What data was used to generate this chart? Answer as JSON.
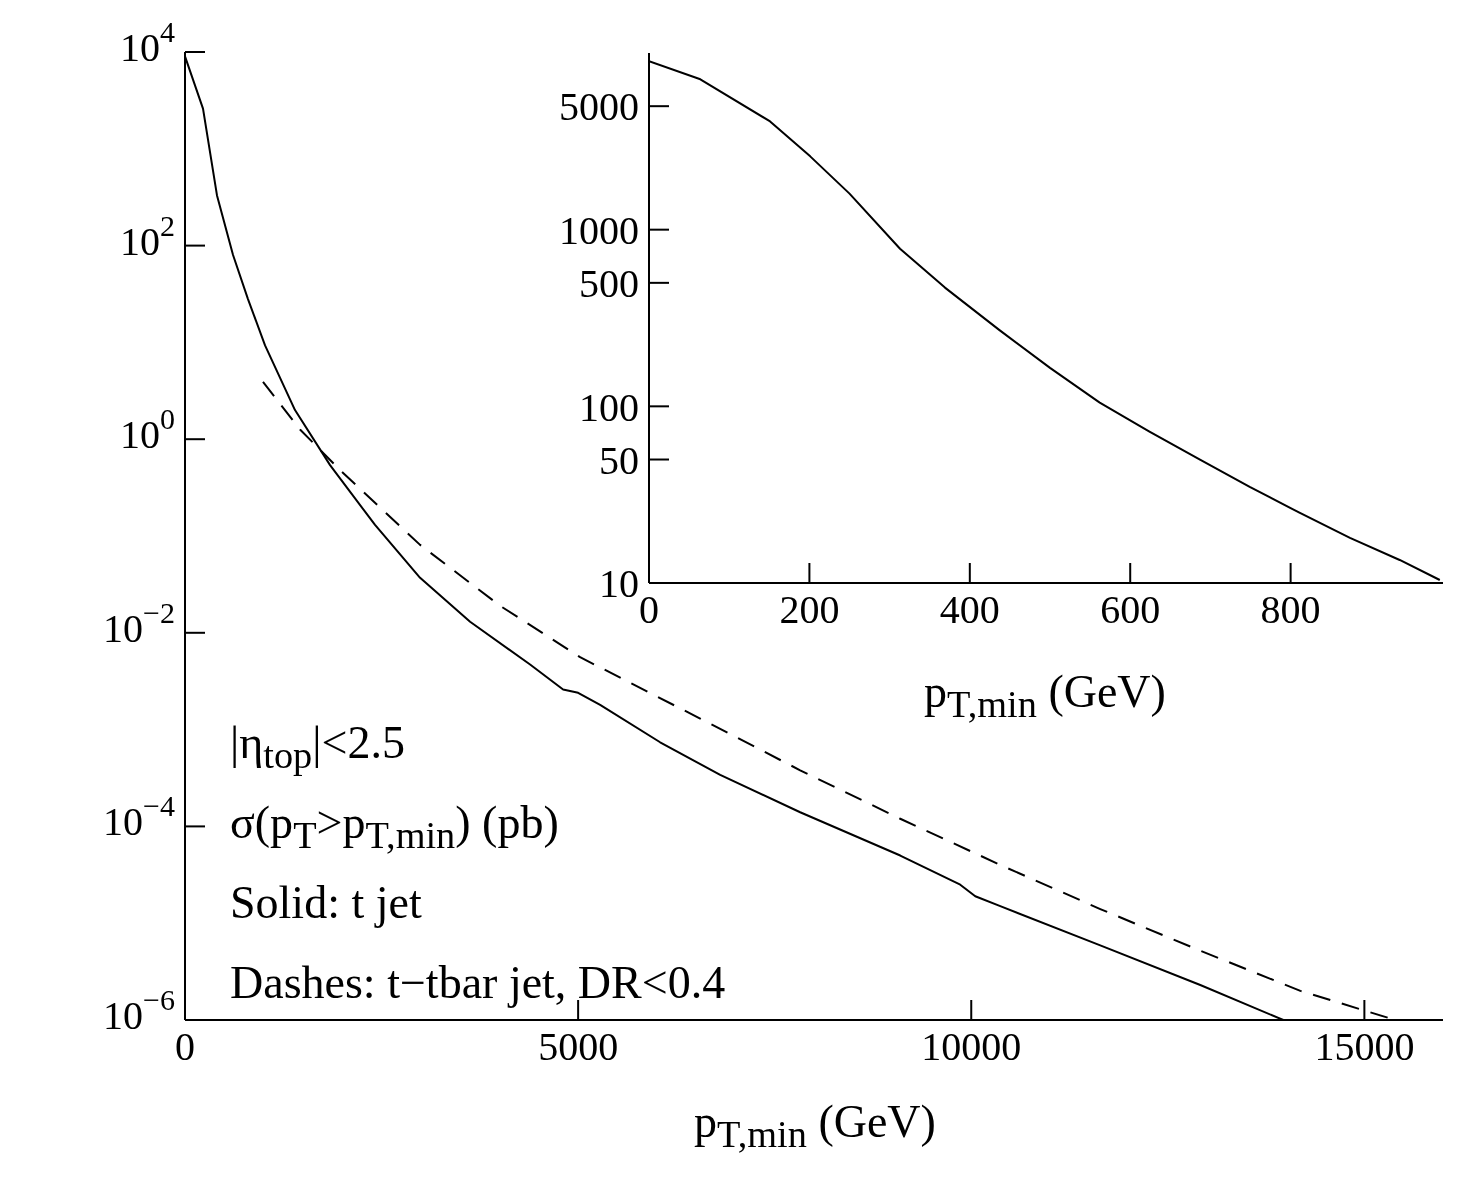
{
  "chart_data": [
    {
      "type": "line",
      "xlabel": "p$_{T,min}$ (GeV)",
      "log": "y",
      "marker": "none",
      "xlim": [
        0,
        16000
      ],
      "ylim": [
        1e-06,
        10000
      ],
      "xticks": [
        0,
        5000,
        10000,
        15000
      ],
      "yticks": [
        {
          "value": 1e-06,
          "label": "10$^{−6}$"
        },
        {
          "value": 0.0001,
          "label": "10$^{−4}$"
        },
        {
          "value": 0.01,
          "label": "10$^{−2}$"
        },
        {
          "value": 1,
          "label": "10$^{0}$"
        },
        {
          "value": 100,
          "label": "10$^{2}$"
        },
        {
          "value": 10000,
          "label": "10$^{4}$"
        }
      ],
      "annotations": [
        "|η$_{top}$|<2.5",
        "σ(p$_{T}$>p$_{T,min}$) (pb)",
        "Solid: t jet",
        "Dashes: t−tbar jet, DR<0.4"
      ],
      "series": [
        {
          "color": "#000000",
          "line_style": "solid",
          "x": [
            0,
            229,
            407,
            611,
            801,
            1018,
            1399,
            1845,
            2417,
            2990,
            3626,
            4389,
            4809,
            5000,
            5280,
            6043,
            6807,
            7824,
            9097,
            9860,
            10051,
            10369,
            11641,
            12913,
            13969
          ],
          "values": [
            9000,
            2600,
            330,
            80,
            28,
            9.3,
            2,
            0.54,
            0.13,
            0.037,
            0.013,
            0.0047,
            0.0026,
            0.0024,
            0.0018,
            0.00074,
            0.00034,
            0.00014,
            5e-05,
            2.5e-05,
            1.9e-05,
            1.5e-05,
            5.9e-06,
            2.3e-06,
            1e-06
          ]
        },
        {
          "color": "#000000",
          "line_style": "dashed",
          "x": [
            992,
            1463,
            1972,
            2990,
            4008,
            5025,
            6552,
            7824,
            9097,
            10369,
            11641,
            12913,
            14186,
            15394
          ],
          "values": [
            3.9,
            1.26,
            0.48,
            0.081,
            0.019,
            0.0056,
            0.0013,
            0.00038,
            0.00012,
            4e-05,
            1.4e-05,
            5.2e-06,
            2e-06,
            1e-06
          ]
        }
      ]
    },
    {
      "type": "line",
      "xlabel": "p$_{T,min}$ (GeV)",
      "log": "y",
      "marker": "none",
      "xlim": [
        0,
        990
      ],
      "ylim": [
        10,
        10000
      ],
      "xticks": [
        0,
        200,
        400,
        600,
        800
      ],
      "yticks": [
        10,
        50,
        100,
        500,
        1000,
        5000
      ],
      "series": [
        {
          "color": "#000000",
          "line_style": "solid",
          "x": [
            0,
            64,
            151,
            201,
            250,
            313,
            369,
            437,
            500,
            562,
            624,
            687,
            749,
            811,
            874,
            936,
            986
          ],
          "values": [
            9000,
            7100,
            4100,
            2600,
            1600,
            780,
            470,
            270,
            165,
            105,
            72,
            50,
            35,
            25,
            18,
            13.5,
            10.4
          ]
        }
      ]
    }
  ]
}
